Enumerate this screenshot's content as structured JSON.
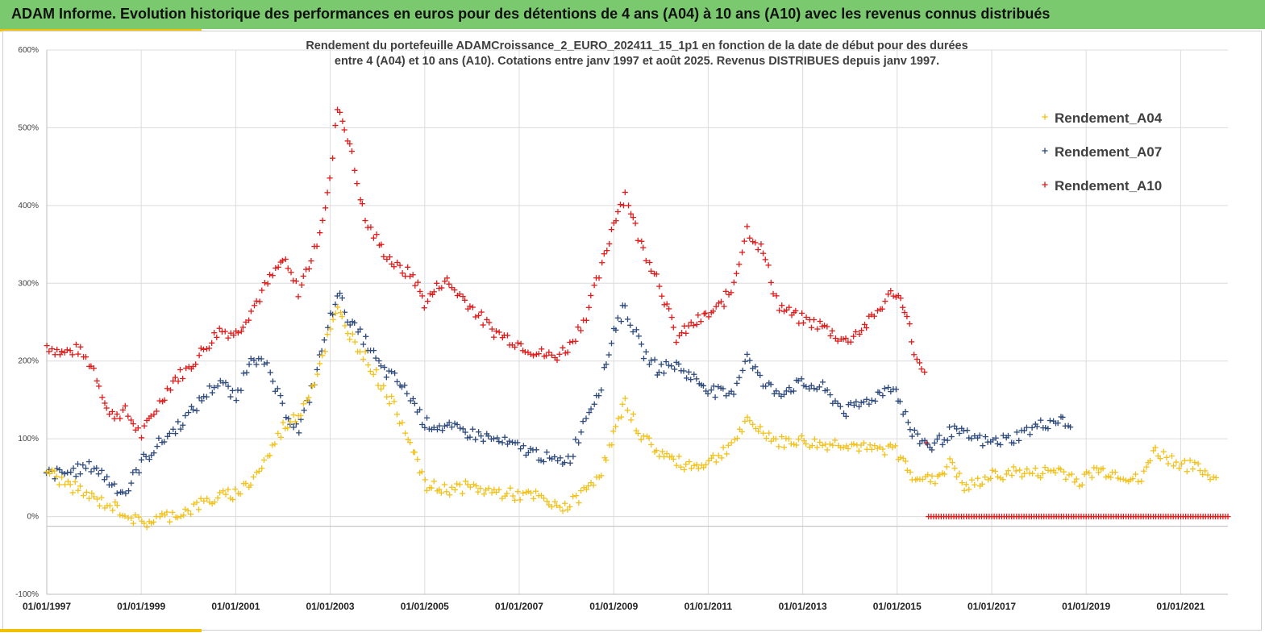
{
  "header": {
    "title": "ADAM Informe. Evolution historique des performances en euros pour des détentions de 4 ans (A04) à 10 ans (A10) avec les revenus connus distribués"
  },
  "colors": {
    "header_bg": "#7bc96f",
    "accent": "#f2c200",
    "a04": "#f2c11a",
    "a07": "#2e4a7d",
    "a10": "#e01b1b"
  },
  "chart_data": {
    "type": "scatter",
    "title_lines": [
      "Rendement du portefeuille ADAMCroissance_2_EURO_202411_15_1p1  en fonction de la date de début pour des durées",
      "entre 4 (A04) et 10 ans (A10). Cotations  entre janv 1997 et août 2025. Revenus DISTRIBUES depuis janv 1997."
    ],
    "xlabel": "",
    "ylabel": "",
    "x_ticks": [
      "01/01/1997",
      "01/01/1999",
      "01/01/2001",
      "01/01/2003",
      "01/01/2005",
      "01/01/2007",
      "01/01/2009",
      "01/01/2011",
      "01/01/2013",
      "01/01/2015",
      "01/01/2017",
      "01/01/2019",
      "01/01/2021"
    ],
    "xlim": [
      "1997-01-01",
      "2022-01-01"
    ],
    "ylim": [
      -100,
      600
    ],
    "y_ticks": [
      "-100%",
      "0%",
      "100%",
      "200%",
      "300%",
      "400%",
      "500%",
      "600%"
    ],
    "y_tick_values": [
      -100,
      0,
      100,
      200,
      300,
      400,
      500,
      600
    ],
    "grid": true,
    "legend_position": "top-right",
    "marker": "+",
    "series": [
      {
        "name": "Rendement_A04",
        "color": "#f2c11a",
        "points": [
          [
            "1997-01-01",
            60
          ],
          [
            "1997-05-01",
            45
          ],
          [
            "1997-09-01",
            35
          ],
          [
            "1998-01-01",
            22
          ],
          [
            "1998-05-01",
            15
          ],
          [
            "1998-09-01",
            5
          ],
          [
            "1999-01-01",
            -10
          ],
          [
            "1999-05-01",
            -3
          ],
          [
            "1999-09-01",
            2
          ],
          [
            "2000-01-01",
            8
          ],
          [
            "2000-05-01",
            18
          ],
          [
            "2000-09-01",
            25
          ],
          [
            "2001-01-01",
            30
          ],
          [
            "2001-05-01",
            45
          ],
          [
            "2001-09-01",
            75
          ],
          [
            "2002-01-01",
            115
          ],
          [
            "2002-05-01",
            130
          ],
          [
            "2002-09-01",
            175
          ],
          [
            "2003-01-01",
            240
          ],
          [
            "2003-03-01",
            265
          ],
          [
            "2003-06-01",
            235
          ],
          [
            "2003-10-01",
            205
          ],
          [
            "2004-02-01",
            170
          ],
          [
            "2004-06-01",
            135
          ],
          [
            "2004-10-01",
            90
          ],
          [
            "2005-01-01",
            40
          ],
          [
            "2005-06-01",
            35
          ],
          [
            "2005-12-01",
            38
          ],
          [
            "2006-06-01",
            32
          ],
          [
            "2006-12-01",
            28
          ],
          [
            "2007-06-01",
            25
          ],
          [
            "2007-10-01",
            12
          ],
          [
            "2008-02-01",
            15
          ],
          [
            "2008-06-01",
            35
          ],
          [
            "2008-10-01",
            60
          ],
          [
            "2009-01-01",
            105
          ],
          [
            "2009-04-01",
            145
          ],
          [
            "2009-08-01",
            105
          ],
          [
            "2009-12-01",
            85
          ],
          [
            "2010-05-01",
            70
          ],
          [
            "2010-10-01",
            65
          ],
          [
            "2011-03-01",
            75
          ],
          [
            "2011-07-01",
            95
          ],
          [
            "2011-11-01",
            120
          ],
          [
            "2012-03-01",
            110
          ],
          [
            "2012-07-01",
            95
          ],
          [
            "2012-12-01",
            98
          ],
          [
            "2013-06-01",
            92
          ],
          [
            "2013-12-01",
            95
          ],
          [
            "2014-06-01",
            85
          ],
          [
            "2014-12-01",
            88
          ],
          [
            "2015-05-01",
            55
          ],
          [
            "2015-10-01",
            45
          ],
          [
            "2016-03-01",
            70
          ],
          [
            "2016-06-01",
            35
          ],
          [
            "2016-12-01",
            50
          ],
          [
            "2017-06-01",
            58
          ],
          [
            "2017-12-01",
            55
          ],
          [
            "2018-06-01",
            60
          ],
          [
            "2018-12-01",
            45
          ],
          [
            "2019-03-01",
            60
          ],
          [
            "2019-09-01",
            55
          ],
          [
            "2020-03-01",
            45
          ],
          [
            "2020-06-01",
            85
          ],
          [
            "2020-12-01",
            70
          ],
          [
            "2021-06-01",
            60
          ],
          [
            "2021-10-01",
            50
          ]
        ]
      },
      {
        "name": "Rendement_A07",
        "color": "#2e4a7d",
        "points": [
          [
            "1997-01-01",
            55
          ],
          [
            "1997-05-01",
            55
          ],
          [
            "1997-09-01",
            60
          ],
          [
            "1998-01-01",
            65
          ],
          [
            "1998-05-01",
            45
          ],
          [
            "1998-09-01",
            30
          ],
          [
            "1999-01-01",
            70
          ],
          [
            "1999-05-01",
            90
          ],
          [
            "1999-09-01",
            110
          ],
          [
            "2000-01-01",
            130
          ],
          [
            "2000-05-01",
            155
          ],
          [
            "2000-09-01",
            175
          ],
          [
            "2001-01-01",
            150
          ],
          [
            "2001-05-01",
            210
          ],
          [
            "2001-09-01",
            190
          ],
          [
            "2002-01-01",
            140
          ],
          [
            "2002-05-01",
            110
          ],
          [
            "2002-09-01",
            175
          ],
          [
            "2003-01-01",
            255
          ],
          [
            "2003-03-01",
            290
          ],
          [
            "2003-06-01",
            250
          ],
          [
            "2003-10-01",
            225
          ],
          [
            "2004-02-01",
            190
          ],
          [
            "2004-06-01",
            175
          ],
          [
            "2004-10-01",
            150
          ],
          [
            "2005-01-01",
            120
          ],
          [
            "2005-06-01",
            115
          ],
          [
            "2005-12-01",
            108
          ],
          [
            "2006-06-01",
            100
          ],
          [
            "2006-12-01",
            90
          ],
          [
            "2007-06-01",
            80
          ],
          [
            "2007-10-01",
            70
          ],
          [
            "2008-02-01",
            75
          ],
          [
            "2008-06-01",
            130
          ],
          [
            "2008-10-01",
            170
          ],
          [
            "2009-01-01",
            240
          ],
          [
            "2009-04-01",
            270
          ],
          [
            "2009-08-01",
            215
          ],
          [
            "2009-12-01",
            190
          ],
          [
            "2010-05-01",
            195
          ],
          [
            "2010-10-01",
            175
          ],
          [
            "2011-03-01",
            160
          ],
          [
            "2011-07-01",
            155
          ],
          [
            "2011-11-01",
            210
          ],
          [
            "2012-03-01",
            170
          ],
          [
            "2012-07-01",
            160
          ],
          [
            "2012-12-01",
            170
          ],
          [
            "2013-06-01",
            165
          ],
          [
            "2013-12-01",
            135
          ],
          [
            "2014-06-01",
            150
          ],
          [
            "2014-12-01",
            170
          ],
          [
            "2015-05-01",
            105
          ],
          [
            "2015-10-01",
            90
          ],
          [
            "2016-03-01",
            110
          ],
          [
            "2016-06-01",
            105
          ],
          [
            "2016-12-01",
            95
          ],
          [
            "2017-06-01",
            100
          ],
          [
            "2017-12-01",
            115
          ],
          [
            "2018-06-01",
            125
          ],
          [
            "2018-09-01",
            115
          ]
        ]
      },
      {
        "name": "Rendement_A10",
        "color": "#e01b1b",
        "points": [
          [
            "1997-01-01",
            220
          ],
          [
            "1997-05-01",
            210
          ],
          [
            "1997-09-01",
            215
          ],
          [
            "1998-01-01",
            190
          ],
          [
            "1998-05-01",
            130
          ],
          [
            "1998-09-01",
            135
          ],
          [
            "1999-01-01",
            105
          ],
          [
            "1999-05-01",
            140
          ],
          [
            "1999-09-01",
            175
          ],
          [
            "2000-01-01",
            190
          ],
          [
            "2000-05-01",
            215
          ],
          [
            "2000-09-01",
            240
          ],
          [
            "2001-01-01",
            235
          ],
          [
            "2001-05-01",
            265
          ],
          [
            "2001-09-01",
            300
          ],
          [
            "2002-01-01",
            330
          ],
          [
            "2002-05-01",
            290
          ],
          [
            "2002-09-01",
            340
          ],
          [
            "2003-01-01",
            430
          ],
          [
            "2003-03-01",
            530
          ],
          [
            "2003-06-01",
            480
          ],
          [
            "2003-10-01",
            380
          ],
          [
            "2004-02-01",
            345
          ],
          [
            "2004-06-01",
            320
          ],
          [
            "2004-10-01",
            310
          ],
          [
            "2005-01-01",
            275
          ],
          [
            "2005-06-01",
            305
          ],
          [
            "2005-12-01",
            275
          ],
          [
            "2006-06-01",
            240
          ],
          [
            "2006-12-01",
            225
          ],
          [
            "2007-06-01",
            210
          ],
          [
            "2007-10-01",
            205
          ],
          [
            "2008-02-01",
            220
          ],
          [
            "2008-06-01",
            260
          ],
          [
            "2008-10-01",
            320
          ],
          [
            "2009-01-01",
            380
          ],
          [
            "2009-04-01",
            415
          ],
          [
            "2009-08-01",
            350
          ],
          [
            "2009-12-01",
            310
          ],
          [
            "2010-05-01",
            230
          ],
          [
            "2010-10-01",
            250
          ],
          [
            "2011-03-01",
            265
          ],
          [
            "2011-07-01",
            290
          ],
          [
            "2011-11-01",
            370
          ],
          [
            "2012-03-01",
            340
          ],
          [
            "2012-07-01",
            270
          ],
          [
            "2012-12-01",
            255
          ],
          [
            "2013-06-01",
            245
          ],
          [
            "2013-12-01",
            225
          ],
          [
            "2014-06-01",
            250
          ],
          [
            "2014-12-01",
            290
          ],
          [
            "2015-03-01",
            270
          ],
          [
            "2015-06-01",
            200
          ],
          [
            "2015-08-01",
            180
          ],
          [
            "2015-09-01",
            0
          ],
          [
            "2017-01-01",
            0
          ],
          [
            "2019-01-01",
            0
          ],
          [
            "2021-01-01",
            0
          ],
          [
            "2022-01-01",
            0
          ]
        ]
      }
    ]
  }
}
